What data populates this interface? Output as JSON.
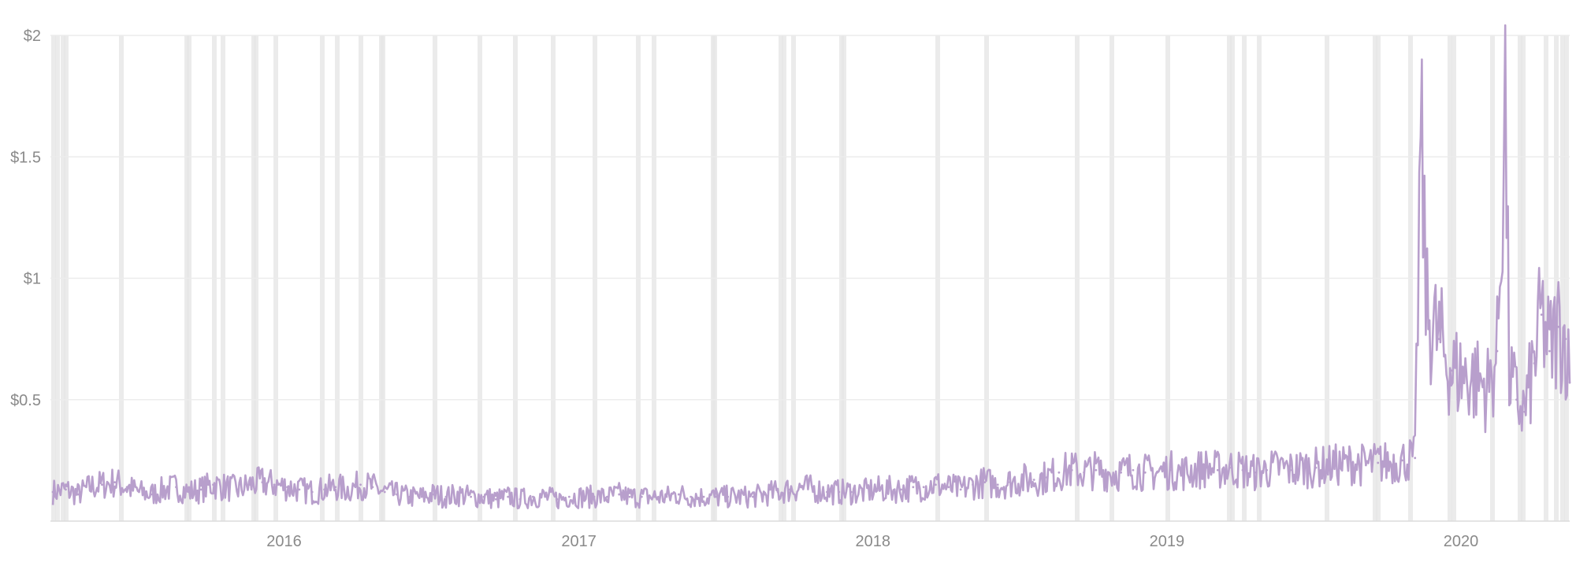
{
  "chart_data": {
    "type": "line",
    "title": "",
    "xlabel": "",
    "ylabel": "",
    "x_tick_labels": [
      "2016",
      "2017",
      "2018",
      "2019",
      "2020"
    ],
    "y_tick_labels": [
      "$2",
      "$1.5",
      "$1",
      "$0.5"
    ],
    "x_ticks": [
      "2016-01-01",
      "2017-01-01",
      "2018-01-01",
      "2019-01-01",
      "2020-01-01"
    ],
    "y_ticks": [
      2,
      1.5,
      1,
      0.5
    ],
    "xlim": [
      "2015-03-17",
      "2020-05-15"
    ],
    "ylim": [
      0,
      2
    ],
    "grid": "horizontal",
    "line_color": "#b89fcc",
    "band_color": "#e6e6e6",
    "gridline_color": "#ececec",
    "series": [
      {
        "points": [
          [
            "2015-03-20",
            0.12
          ],
          [
            "2015-04-05",
            0.13
          ],
          [
            "2015-04-20",
            0.11
          ],
          [
            "2015-05-05",
            0.14
          ],
          [
            "2015-05-20",
            0.15
          ],
          [
            "2015-06-05",
            0.16
          ],
          [
            "2015-06-20",
            0.14
          ],
          [
            "2015-07-05",
            0.12
          ],
          [
            "2015-07-20",
            0.11
          ],
          [
            "2015-08-05",
            0.13
          ],
          [
            "2015-08-20",
            0.14
          ],
          [
            "2015-09-05",
            0.12
          ],
          [
            "2015-09-20",
            0.13
          ],
          [
            "2015-10-05",
            0.15
          ],
          [
            "2015-10-20",
            0.14
          ],
          [
            "2015-11-05",
            0.13
          ],
          [
            "2015-11-20",
            0.15
          ],
          [
            "2015-12-05",
            0.16
          ],
          [
            "2015-12-20",
            0.15
          ],
          [
            "2016-01-05",
            0.14
          ],
          [
            "2016-01-20",
            0.13
          ],
          [
            "2016-02-05",
            0.12
          ],
          [
            "2016-02-20",
            0.13
          ],
          [
            "2016-03-05",
            0.14
          ],
          [
            "2016-03-20",
            0.13
          ],
          [
            "2016-04-05",
            0.15
          ],
          [
            "2016-04-20",
            0.14
          ],
          [
            "2016-05-05",
            0.12
          ],
          [
            "2016-05-20",
            0.11
          ],
          [
            "2016-06-05",
            0.1
          ],
          [
            "2016-06-20",
            0.1
          ],
          [
            "2016-07-05",
            0.11
          ],
          [
            "2016-07-20",
            0.1
          ],
          [
            "2016-08-05",
            0.11
          ],
          [
            "2016-08-20",
            0.1
          ],
          [
            "2016-09-05",
            0.1
          ],
          [
            "2016-09-20",
            0.09
          ],
          [
            "2016-10-05",
            0.1
          ],
          [
            "2016-10-20",
            0.09
          ],
          [
            "2016-11-05",
            0.1
          ],
          [
            "2016-11-20",
            0.1
          ],
          [
            "2016-12-05",
            0.09
          ],
          [
            "2016-12-20",
            0.1
          ],
          [
            "2017-01-05",
            0.1
          ],
          [
            "2017-01-20",
            0.1
          ],
          [
            "2017-02-05",
            0.1
          ],
          [
            "2017-02-20",
            0.11
          ],
          [
            "2017-03-05",
            0.1
          ],
          [
            "2017-03-20",
            0.1
          ],
          [
            "2017-04-05",
            0.1
          ],
          [
            "2017-04-20",
            0.1
          ],
          [
            "2017-05-05",
            0.11
          ],
          [
            "2017-05-20",
            0.1
          ],
          [
            "2017-06-05",
            0.1
          ],
          [
            "2017-06-20",
            0.1
          ],
          [
            "2017-07-05",
            0.1
          ],
          [
            "2017-07-20",
            0.1
          ],
          [
            "2017-08-05",
            0.1
          ],
          [
            "2017-08-20",
            0.11
          ],
          [
            "2017-09-05",
            0.12
          ],
          [
            "2017-09-20",
            0.13
          ],
          [
            "2017-10-05",
            0.14
          ],
          [
            "2017-10-20",
            0.13
          ],
          [
            "2017-11-05",
            0.12
          ],
          [
            "2017-11-20",
            0.12
          ],
          [
            "2017-12-05",
            0.12
          ],
          [
            "2017-12-20",
            0.12
          ],
          [
            "2018-01-05",
            0.13
          ],
          [
            "2018-01-20",
            0.13
          ],
          [
            "2018-02-05",
            0.13
          ],
          [
            "2018-02-20",
            0.14
          ],
          [
            "2018-03-05",
            0.14
          ],
          [
            "2018-03-20",
            0.15
          ],
          [
            "2018-04-05",
            0.14
          ],
          [
            "2018-04-20",
            0.13
          ],
          [
            "2018-05-05",
            0.15
          ],
          [
            "2018-05-20",
            0.16
          ],
          [
            "2018-06-05",
            0.15
          ],
          [
            "2018-06-20",
            0.16
          ],
          [
            "2018-07-05",
            0.17
          ],
          [
            "2018-07-20",
            0.17
          ],
          [
            "2018-08-05",
            0.18
          ],
          [
            "2018-08-20",
            0.2
          ],
          [
            "2018-09-05",
            0.21
          ],
          [
            "2018-09-20",
            0.2
          ],
          [
            "2018-10-05",
            0.21
          ],
          [
            "2018-10-20",
            0.2
          ],
          [
            "2018-11-05",
            0.2
          ],
          [
            "2018-11-20",
            0.21
          ],
          [
            "2018-12-05",
            0.2
          ],
          [
            "2018-12-20",
            0.2
          ],
          [
            "2019-01-05",
            0.21
          ],
          [
            "2019-01-20",
            0.2
          ],
          [
            "2019-02-05",
            0.21
          ],
          [
            "2019-02-20",
            0.22
          ],
          [
            "2019-03-05",
            0.21
          ],
          [
            "2019-03-20",
            0.22
          ],
          [
            "2019-04-05",
            0.21
          ],
          [
            "2019-04-20",
            0.2
          ],
          [
            "2019-05-05",
            0.21
          ],
          [
            "2019-05-20",
            0.22
          ],
          [
            "2019-06-05",
            0.21
          ],
          [
            "2019-06-20",
            0.22
          ],
          [
            "2019-07-05",
            0.22
          ],
          [
            "2019-07-20",
            0.23
          ],
          [
            "2019-08-05",
            0.23
          ],
          [
            "2019-08-20",
            0.24
          ],
          [
            "2019-09-05",
            0.23
          ],
          [
            "2019-09-20",
            0.24
          ],
          [
            "2019-10-05",
            0.24
          ],
          [
            "2019-10-20",
            0.25
          ],
          [
            "2019-11-05",
            0.26
          ],
          [
            "2019-11-12",
            1.57
          ],
          [
            "2019-11-15",
            1.3
          ],
          [
            "2019-11-20",
            0.85
          ],
          [
            "2019-12-05",
            0.75
          ],
          [
            "2019-12-20",
            0.62
          ],
          [
            "2020-01-05",
            0.6
          ],
          [
            "2020-01-20",
            0.58
          ],
          [
            "2020-02-05",
            0.55
          ],
          [
            "2020-02-15",
            0.7
          ],
          [
            "2020-02-25",
            1.74
          ],
          [
            "2020-03-01",
            0.6
          ],
          [
            "2020-03-10",
            0.5
          ],
          [
            "2020-03-20",
            0.45
          ],
          [
            "2020-04-01",
            0.65
          ],
          [
            "2020-04-10",
            0.85
          ],
          [
            "2020-04-20",
            0.7
          ],
          [
            "2020-05-01",
            0.8
          ],
          [
            "2020-05-10",
            0.75
          ],
          [
            "2020-05-15",
            0.57
          ]
        ]
      }
    ]
  }
}
